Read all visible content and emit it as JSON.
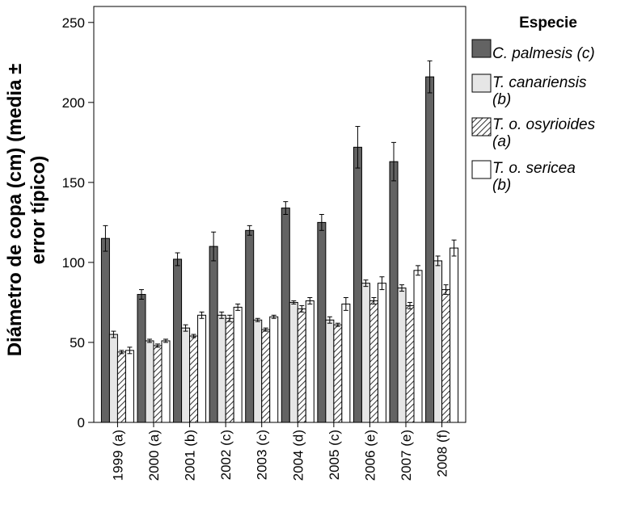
{
  "chart_data": {
    "type": "bar",
    "ylabel_lines": [
      "Diámetro de copa (cm) (media ±",
      "error típico)"
    ],
    "xlabel": "",
    "ylim": [
      0,
      260
    ],
    "yticks": [
      0,
      50,
      100,
      150,
      200,
      250
    ],
    "grid": false,
    "legend_placement": "right",
    "legend_title": "Especie",
    "categories": [
      "1999 (a)",
      "2000 (a)",
      "2001 (b)",
      "2002 (c)",
      "2003 (c)",
      "2004 (d)",
      "2005 (c)",
      "2006 (e)",
      "2007 (e)",
      "2008 (f)"
    ],
    "series": [
      {
        "name_lines": [
          "C. palmesis (c)"
        ],
        "fill": "solid",
        "color": "#636363",
        "values": [
          115,
          80,
          102,
          110,
          120,
          134,
          125,
          172,
          163,
          216
        ],
        "errors": [
          8,
          3,
          4,
          9,
          3,
          4,
          5,
          13,
          12,
          10
        ]
      },
      {
        "name_lines": [
          "T. canariensis",
          "(b)"
        ],
        "fill": "solid",
        "color": "#e6e6e6",
        "values": [
          55,
          51,
          59,
          67,
          64,
          75,
          64,
          87,
          84,
          101
        ],
        "errors": [
          2,
          1,
          2,
          2,
          1,
          1,
          2,
          2,
          2,
          3
        ]
      },
      {
        "name_lines": [
          "T. o. osyrioides",
          "(a)"
        ],
        "fill": "hatch",
        "color": "#ffffff",
        "values": [
          44,
          48,
          54,
          65,
          58,
          71,
          61,
          76,
          73,
          83
        ],
        "errors": [
          1,
          1,
          1,
          2,
          1,
          2,
          1,
          2,
          2,
          3
        ]
      },
      {
        "name_lines": [
          "T. o. sericea",
          "(b)"
        ],
        "fill": "solid",
        "color": "#ffffff",
        "values": [
          45,
          51,
          67,
          72,
          66,
          76,
          74,
          87,
          95,
          109
        ],
        "errors": [
          2,
          1,
          2,
          2,
          1,
          2,
          4,
          4,
          3,
          5
        ]
      }
    ]
  }
}
